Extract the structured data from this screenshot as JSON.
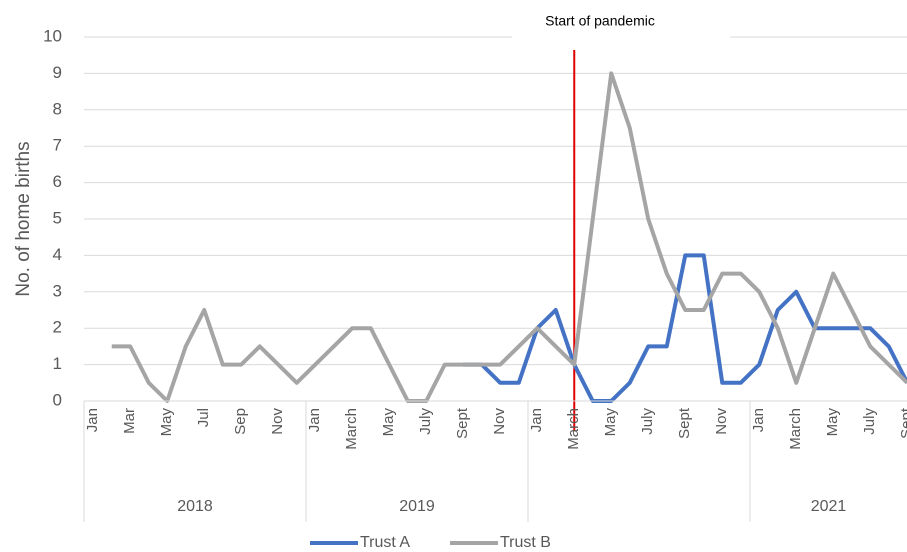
{
  "chart_data": {
    "type": "line",
    "y_label": "No. of home births",
    "annotation": {
      "text": "Start of pandemic",
      "category_index": 26,
      "color": "#e00000"
    },
    "categories": [
      "Jan",
      null,
      "Mar",
      null,
      "May",
      null,
      "Jul",
      null,
      "Sep",
      null,
      "Nov",
      null,
      "Jan",
      null,
      "March",
      null,
      "May",
      null,
      "July",
      null,
      "Sept",
      null,
      "Nov",
      null,
      "Jan",
      null,
      "March",
      null,
      "May",
      null,
      "July",
      null,
      "Sept",
      null,
      "Nov",
      null,
      "Jan",
      null,
      "March",
      null,
      "May",
      null,
      "July",
      null,
      "Sept"
    ],
    "year_groups": [
      "2018",
      "2019",
      null,
      "2021"
    ],
    "series": [
      {
        "name": "Trust A",
        "color": "#4472c4",
        "values": [
          null,
          null,
          null,
          null,
          null,
          null,
          null,
          null,
          null,
          null,
          null,
          null,
          null,
          null,
          null,
          null,
          null,
          null,
          null,
          null,
          1,
          1,
          0.5,
          0.5,
          2,
          2.5,
          1,
          0,
          0,
          0.5,
          1.5,
          1.5,
          4,
          4,
          0.5,
          0.5,
          1,
          2.5,
          3,
          2,
          2,
          2,
          2,
          1.5,
          0.5
        ]
      },
      {
        "name": "Trust B",
        "color": "#a5a5a5",
        "values": [
          null,
          1.5,
          1.5,
          0.5,
          0,
          1.5,
          2.5,
          1,
          1,
          1.5,
          1,
          0.5,
          1,
          1.5,
          2,
          2,
          1,
          0,
          0,
          1,
          1,
          1,
          1,
          1.5,
          2,
          1.5,
          1,
          5,
          9,
          7.5,
          5,
          3.5,
          2.5,
          2.5,
          3.5,
          3.5,
          3,
          2,
          0.5,
          2,
          3.5,
          2.5,
          1.5,
          1,
          0.5
        ]
      }
    ],
    "ylim": [
      0,
      10
    ],
    "yticks": [
      0,
      1,
      2,
      3,
      4,
      5,
      6,
      7,
      8,
      9,
      10
    ],
    "grid": true,
    "legend": "bottom"
  }
}
